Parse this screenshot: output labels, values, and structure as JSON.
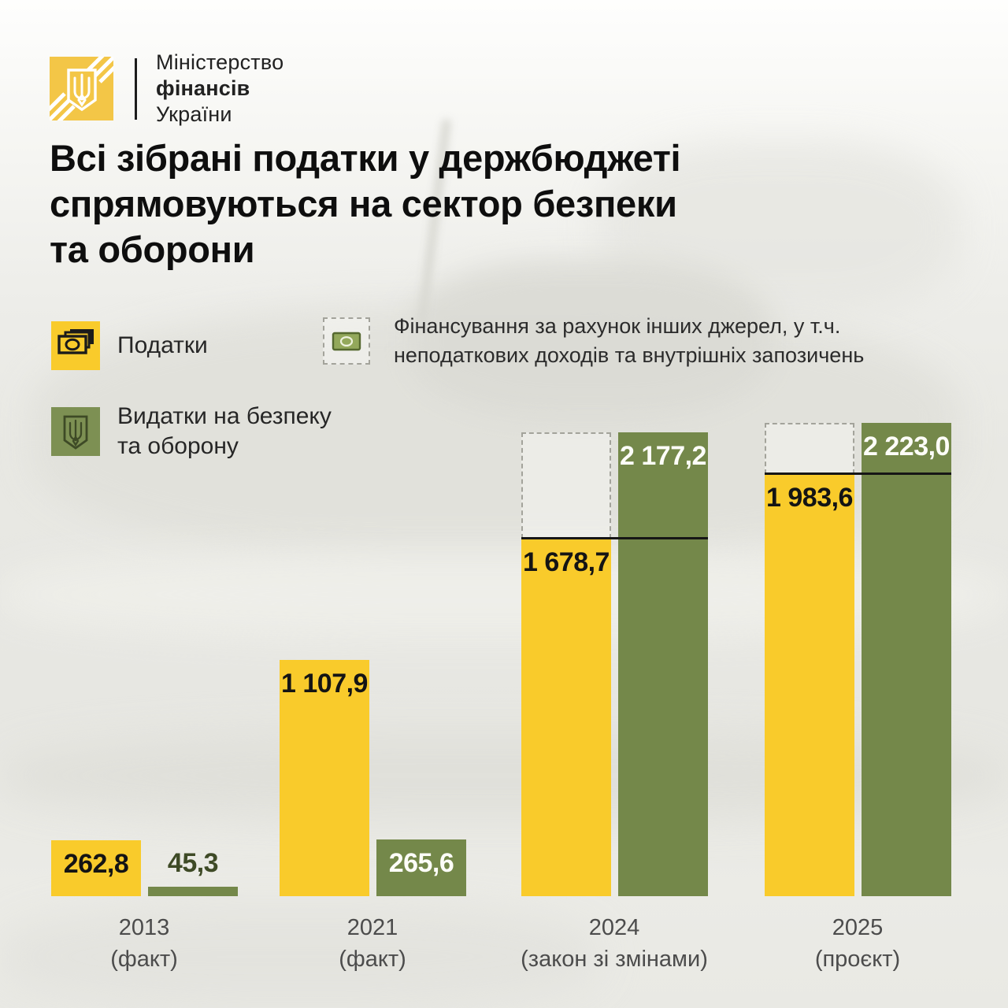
{
  "brand": {
    "line1": "Міністерство",
    "line2": "фінансів",
    "line3": "України"
  },
  "title": {
    "lines": [
      "Всі зібрані податки у держбюджеті",
      "спрямовуються на сектор безпеки",
      "та оборони"
    ]
  },
  "legend": {
    "taxes_label": "Податки",
    "defense_label_line1": "Видатки на безпеку",
    "defense_label_line2": "та оборону",
    "other_line1": "Фінансування за рахунок інших джерел, у т.ч.",
    "other_line2": "неподаткових доходів та внутрішніх запозичень"
  },
  "chart_data": {
    "type": "bar",
    "title": "Всі зібрані податки у держбюджеті спрямовуються на сектор безпеки та оборони",
    "categories": [
      "2013 (факт)",
      "2021 (факт)",
      "2024 (закон зі змінами)",
      "2025 (проєкт)"
    ],
    "series": [
      {
        "name": "Податки",
        "values": [
          262.8,
          1107.9,
          1678.7,
          1983.6
        ]
      },
      {
        "name": "Видатки на безпеку та оборону",
        "values": [
          45.3,
          265.6,
          2177.2,
          2223.0
        ]
      }
    ],
    "ylim": [
      0,
      2223.0
    ],
    "grid": false,
    "legend_position": "top",
    "groups": [
      {
        "year": "2013",
        "note": "(факт)",
        "tax": 262.8,
        "tax_label": "262,8",
        "def": 45.3,
        "def_label": "45,3",
        "other_sources": false
      },
      {
        "year": "2021",
        "note": "(факт)",
        "tax": 1107.9,
        "tax_label": "1 107,9",
        "def": 265.6,
        "def_label": "265,6",
        "other_sources": false
      },
      {
        "year": "2024",
        "note": "(закон зі змінами)",
        "tax": 1678.7,
        "tax_label": "1 678,7",
        "def": 2177.2,
        "def_label": "2 177,2",
        "other_sources": true
      },
      {
        "year": "2025",
        "note": "(проєкт)",
        "tax": 1983.6,
        "tax_label": "1 983,6",
        "def": 2223.0,
        "def_label": "2 223,0",
        "other_sources": true
      }
    ],
    "colors": {
      "tax": "#F9CB2B",
      "defense": "#74884A",
      "dashed_border": "#A3A39B",
      "value_dark": "#141414",
      "value_light": "#FDFDF8",
      "value_olive": "#3E4A26"
    }
  }
}
